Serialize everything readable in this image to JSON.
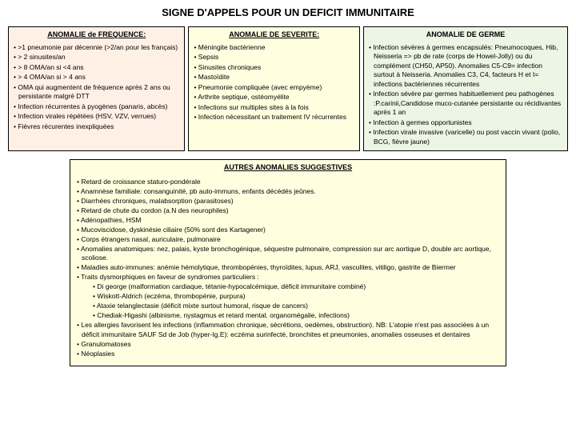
{
  "title": "SIGNE D'APPELS POUR UN DEFICIT IMMUNITAIRE",
  "col1": {
    "header": "ANOMALIE de FREQUENCE:",
    "b1": "• >1 pneumonie par décennie (>2/an pour les français)",
    "b2": "• > 2 sinusites/an",
    "b3": "• > 8 OMA/an si <4 ans",
    "b4": "• > 4 OMA/an si > 4 ans",
    "b5": "• OMA qui augmentent de fréquence après 2 ans ou persistante malgré DTT",
    "b6": "• Infection récurrentes à pyogènes (panaris, abcès)",
    "b7": "• Infection virales répétées (HSV, VZV, verrues)",
    "b8": "• Fièvres récurentes inexpliquées"
  },
  "col2": {
    "header": "ANOMALIE DE SEVERITE:",
    "b1": "• Méningite bactérienne",
    "b2": "• Sepsis",
    "b3": "• Sinusites chroniques",
    "b4": "• Mastoïdite",
    "b5": "• Pneumonie compliquée (avec empyème)",
    "b6": "• Arthrite septique, ostéomyélite",
    "b7": "• Infections sur multiples sites à la fois",
    "b8": "• Infection nécessitant un traitement IV récurrentes"
  },
  "col3": {
    "header": "ANOMALIE DE GERME",
    "b1": "• Infection sévères à germes encapsulés: Pneumocoques, Hib, Neisseria => pb de rate (corps de Howel-Jolly) ou du complément (CH50, AP50). Anomalies C5-C9= infection surtout à Neisseria. Anomalies C3, C4, facteurs H et I= infections bactériennes récurrentes",
    "b2": "• Infection sévère par germes habituellement peu pathogènes :P.carinii,Candidose muco-cutanée persistante ou récidivantes après 1 an",
    "b3": "• Infection à germes opportunistes",
    "b4": "• Infection virale invasive (varicelle) ou post vaccin vivant (polio, BCG, fièvre jaune)"
  },
  "bottom": {
    "title": "AUTRES ANOMALIES SUGGESTIVES",
    "b1": "• Retard de croissance staturo-pondérale",
    "b2": "• Anamnèse familiale: consanguinité, pb auto-immuns, enfants décédés jeûnes.",
    "b3": "• Diarrhées chroniques, malabsorption (parasitoses)",
    "b4": "• Retard de chute du cordon (a.N des neurophiles)",
    "b5": "• Adénopathies, HSM",
    "b6": "• Mucoviscidose, dyskinésie ciliaire (50% sont des Kartagener)",
    "b7": "• Corps étrangers nasal, auriculaire, pulmonaire",
    "b8": "• Anomalies anatomiques: nez, palais, kyste bronchogénique, séquestre pulmonaire, compression sur arc aortique D, double arc aortique, scoliose.",
    "b9": "• Maladies auto-immunes: anémie hémolytique, thrombopénies, thyroïdites, lupus, ARJ, vasculites, vitiligo, gastrite de Biermer",
    "b10": "• Traits dysmorphiques en faveur de syndromes particuliers :",
    "s1": "• Di george (malformation cardiaque, tétanie-hypocalcémique, déficit immunitaire combiné)",
    "s2": "• Wiskott-Aldrich (eczéma, thrombopénie, purpura)",
    "s3": "• Ataxie telanglectasie (déficit mixte surtout humoral, risque de cancers)",
    "s4": "• Chediak-Higashi (albinisme, nystagmus et retard mental, organomégalie, infections)",
    "b11": "• Les allergies favorisent les infections (inflammation chronique, sécrétions, oedèmes, obstruction). NB: L'atopie n'est pas associées à un déficit immunitaire SAUF Sd de Job (hyper-Ig.E): eczéma surinfecté, bronchites et pneumonies, anomalies osseuses et dentaires",
    "b12": "• Granulomatoses",
    "b13": "• Néoplasies"
  }
}
